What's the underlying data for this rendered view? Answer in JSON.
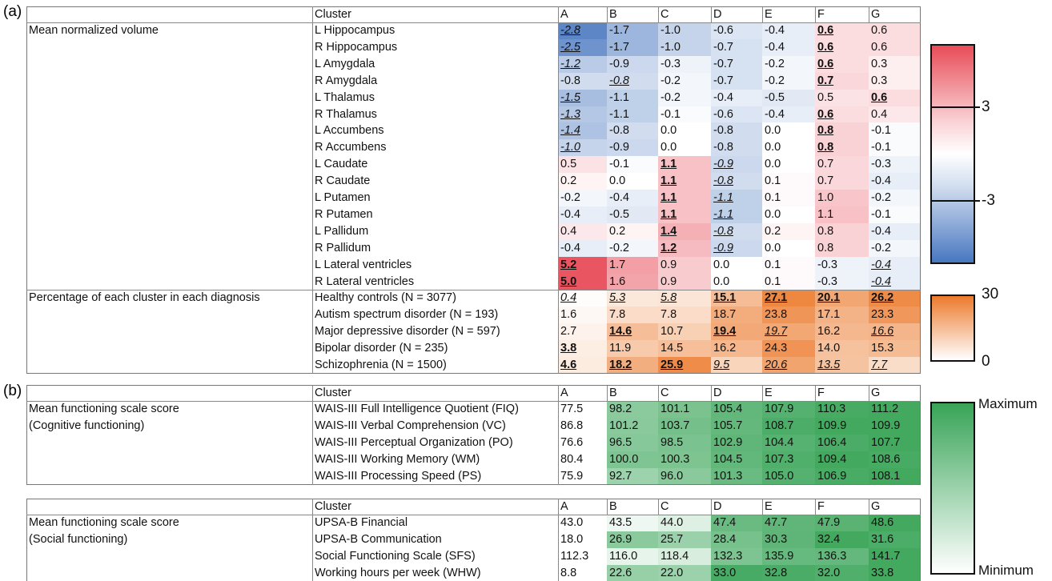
{
  "panel_labels": [
    "(a)",
    "(b)"
  ],
  "colors": {
    "negative": "#4877c0",
    "positive": "#e84c58",
    "orange": "#ec7a2c",
    "green": "#38a457"
  },
  "tables": [
    {
      "header": [
        "Cluster",
        "A",
        "B",
        "C",
        "D",
        "E",
        "F",
        "G"
      ],
      "sections": [
        {
          "group": [
            "Mean normalized volume"
          ],
          "scale": "diverging",
          "rows": [
            {
              "name": "L Hippocampus",
              "cells": [
                {
                  "text": "-2.8",
                  "style": "italic-underline"
                },
                "-1.7",
                "-1.0",
                "-0.6",
                "-0.4",
                {
                  "text": "0.6",
                  "style": "bold-underline"
                },
                "0.6"
              ]
            },
            {
              "name": "R Hippocampus",
              "cells": [
                {
                  "text": "-2.5",
                  "style": "italic-underline"
                },
                "-1.7",
                "-1.0",
                "-0.7",
                "-0.4",
                {
                  "text": "0.6",
                  "style": "bold-underline"
                },
                "0.6"
              ]
            },
            {
              "name": "L Amygdala",
              "cells": [
                {
                  "text": "-1.2",
                  "style": "italic-underline"
                },
                "-0.9",
                "-0.3",
                "-0.7",
                "-0.2",
                {
                  "text": "0.6",
                  "style": "bold-underline"
                },
                "0.3"
              ]
            },
            {
              "name": "R Amygdala",
              "cells": [
                "-0.8",
                {
                  "text": "-0.8",
                  "style": "italic-underline"
                },
                "-0.2",
                "-0.7",
                "-0.2",
                {
                  "text": "0.7",
                  "style": "bold-underline"
                },
                "0.3"
              ]
            },
            {
              "name": "L Thalamus",
              "cells": [
                {
                  "text": "-1.5",
                  "style": "italic-underline"
                },
                "-1.1",
                "-0.2",
                "-0.4",
                "-0.5",
                "0.5",
                {
                  "text": "0.6",
                  "style": "bold-underline"
                }
              ]
            },
            {
              "name": "R Thalamus",
              "cells": [
                {
                  "text": "-1.3",
                  "style": "italic-underline"
                },
                "-1.1",
                "-0.1",
                "-0.6",
                "-0.4",
                {
                  "text": "0.6",
                  "style": "bold-underline"
                },
                "0.4"
              ]
            },
            {
              "name": "L Accumbens",
              "cells": [
                {
                  "text": "-1.4",
                  "style": "italic-underline"
                },
                "-0.8",
                "0.0",
                "-0.8",
                "0.0",
                {
                  "text": "0.8",
                  "style": "bold-underline"
                },
                "-0.1"
              ]
            },
            {
              "name": "R Accumbens",
              "cells": [
                {
                  "text": "-1.0",
                  "style": "italic-underline"
                },
                "-0.9",
                "0.0",
                "-0.8",
                "0.0",
                {
                  "text": "0.8",
                  "style": "bold-underline"
                },
                "-0.1"
              ]
            },
            {
              "name": "L Caudate",
              "cells": [
                "0.5",
                "-0.1",
                {
                  "text": "1.1",
                  "style": "bold-underline"
                },
                {
                  "text": "-0.9",
                  "style": "italic-underline"
                },
                "0.0",
                "0.7",
                "-0.3"
              ]
            },
            {
              "name": "R Caudate",
              "cells": [
                "0.2",
                "0.0",
                {
                  "text": "1.1",
                  "style": "bold-underline"
                },
                {
                  "text": "-0.8",
                  "style": "italic-underline"
                },
                "0.1",
                "0.7",
                "-0.4"
              ]
            },
            {
              "name": "L Putamen",
              "cells": [
                "-0.2",
                "-0.4",
                {
                  "text": "1.1",
                  "style": "bold-underline"
                },
                {
                  "text": "-1.1",
                  "style": "italic-underline"
                },
                "0.1",
                "1.0",
                "-0.2"
              ]
            },
            {
              "name": "R Putamen",
              "cells": [
                "-0.4",
                "-0.5",
                {
                  "text": "1.1",
                  "style": "bold-underline"
                },
                {
                  "text": "-1.1",
                  "style": "italic-underline"
                },
                "0.0",
                "1.1",
                "-0.1"
              ]
            },
            {
              "name": "L Pallidum",
              "cells": [
                "0.4",
                "0.2",
                {
                  "text": "1.4",
                  "style": "bold-underline"
                },
                {
                  "text": "-0.8",
                  "style": "italic-underline"
                },
                "0.2",
                "0.8",
                "-0.4"
              ]
            },
            {
              "name": "R Pallidum",
              "cells": [
                "-0.4",
                "-0.2",
                {
                  "text": "1.2",
                  "style": "bold-underline"
                },
                {
                  "text": "-0.9",
                  "style": "italic-underline"
                },
                "0.0",
                "0.8",
                "-0.2"
              ]
            },
            {
              "name": "L Lateral ventricles",
              "cells": [
                {
                  "text": "5.2",
                  "style": "bold-underline"
                },
                "1.7",
                "0.9",
                "0.0",
                "0.1",
                "-0.3",
                {
                  "text": "-0.4",
                  "style": "italic-underline"
                }
              ]
            },
            {
              "name": "R Lateral ventricles",
              "cells": [
                {
                  "text": "5.0",
                  "style": "bold-underline"
                },
                "1.6",
                "0.9",
                "0.0",
                "0.1",
                "-0.3",
                {
                  "text": "-0.4",
                  "style": "italic-underline"
                }
              ]
            }
          ]
        },
        {
          "group": [
            "Percentage of each cluster in each diagnosis"
          ],
          "scale": "orange",
          "rows": [
            {
              "name": "Healthy controls (N = 3077)",
              "cells": [
                {
                  "text": "0.4",
                  "style": "italic-underline"
                },
                {
                  "text": "5.3",
                  "style": "italic-underline"
                },
                {
                  "text": "5.8",
                  "style": "italic-underline"
                },
                {
                  "text": "15.1",
                  "style": "bold-underline"
                },
                {
                  "text": "27.1",
                  "style": "bold-underline"
                },
                {
                  "text": "20.1",
                  "style": "bold-underline"
                },
                {
                  "text": "26.2",
                  "style": "bold-underline"
                }
              ]
            },
            {
              "name": "Autism spectrum disorder (N = 193)",
              "cells": [
                "1.6",
                "7.8",
                "7.8",
                "18.7",
                "23.8",
                "17.1",
                "23.3"
              ]
            },
            {
              "name": "Major depressive disorder (N = 597)",
              "cells": [
                "2.7",
                {
                  "text": "14.6",
                  "style": "bold-underline"
                },
                "10.7",
                {
                  "text": "19.4",
                  "style": "bold-underline"
                },
                {
                  "text": "19.7",
                  "style": "italic-underline"
                },
                "16.2",
                {
                  "text": "16.6",
                  "style": "italic-underline"
                }
              ]
            },
            {
              "name": "Bipolar disorder (N = 235)",
              "cells": [
                {
                  "text": "3.8",
                  "style": "bold-underline"
                },
                "11.9",
                "14.5",
                "16.2",
                "24.3",
                "14.0",
                "15.3"
              ]
            },
            {
              "name": "Schizophrenia (N = 1500)",
              "cells": [
                {
                  "text": "4.6",
                  "style": "bold-underline"
                },
                {
                  "text": "18.2",
                  "style": "bold-underline"
                },
                {
                  "text": "25.9",
                  "style": "bold-underline"
                },
                {
                  "text": "9.5",
                  "style": "italic-underline"
                },
                {
                  "text": "20.6",
                  "style": "italic-underline"
                },
                {
                  "text": "13.5",
                  "style": "italic-underline"
                },
                {
                  "text": "7.7",
                  "style": "italic-underline"
                }
              ]
            }
          ]
        }
      ]
    },
    {
      "header": [
        "Cluster",
        "A",
        "B",
        "C",
        "D",
        "E",
        "F",
        "G"
      ],
      "sections": [
        {
          "group": [
            "Mean functioning scale score",
            "(Cognitive functioning)"
          ],
          "scale": "green",
          "rows": [
            {
              "name": "WAIS-III Full Intelligence Quotient (FIQ)",
              "cells": [
                "77.5",
                "98.2",
                "101.1",
                "105.4",
                "107.9",
                "110.3",
                "111.2"
              ]
            },
            {
              "name": "WAIS-III Verbal Comprehension (VC)",
              "cells": [
                "86.8",
                "101.2",
                "103.7",
                "105.7",
                "108.7",
                "109.9",
                "109.9"
              ]
            },
            {
              "name": "WAIS-III Perceptual Organization (PO)",
              "cells": [
                "76.6",
                "96.5",
                "98.5",
                "102.9",
                "104.4",
                "106.4",
                "107.7"
              ]
            },
            {
              "name": "WAIS-III Working Memory (WM)",
              "cells": [
                "80.4",
                "100.0",
                "100.3",
                "104.5",
                "107.3",
                "109.4",
                "108.6"
              ]
            },
            {
              "name": "WAIS-III Processing Speed (PS)",
              "cells": [
                "75.9",
                "92.7",
                "96.0",
                "101.3",
                "105.0",
                "106.9",
                "108.1"
              ]
            }
          ]
        }
      ]
    },
    {
      "header": [
        "Cluster",
        "A",
        "B",
        "C",
        "D",
        "E",
        "F",
        "G"
      ],
      "sections": [
        {
          "group": [
            "Mean functioning scale score",
            "(Social functioning)"
          ],
          "scale": "green",
          "rows": [
            {
              "name": "UPSA-B Financial",
              "cells": [
                "43.0",
                "43.5",
                "44.0",
                "47.4",
                "47.7",
                "47.9",
                "48.6"
              ]
            },
            {
              "name": "UPSA-B Communication",
              "cells": [
                "18.0",
                "26.9",
                "25.7",
                "28.4",
                "30.3",
                "32.4",
                "31.6"
              ]
            },
            {
              "name": "Social Functioning Scale (SFS)",
              "cells": [
                "112.3",
                "116.0",
                "118.4",
                "132.3",
                "135.9",
                "136.3",
                "141.7"
              ]
            },
            {
              "name": "Working hours per week (WHW)",
              "cells": [
                "8.8",
                "22.6",
                "22.0",
                "33.0",
                "32.8",
                "32.0",
                "33.8"
              ]
            }
          ]
        }
      ]
    }
  ],
  "colorbars": [
    {
      "scale": "diverging",
      "lim": [
        -7,
        7
      ],
      "ticks": [
        3,
        -3
      ]
    },
    {
      "scale": "orange",
      "lim": [
        0,
        30
      ],
      "ticks": [
        30,
        0
      ]
    },
    {
      "scale": "green",
      "labels": [
        "Maximum",
        "Minimum"
      ]
    }
  ]
}
